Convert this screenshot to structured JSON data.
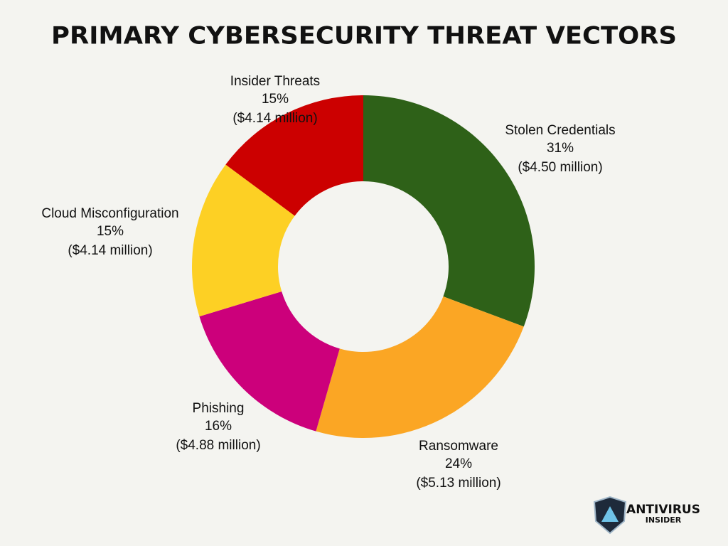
{
  "chart_data": {
    "type": "donut",
    "title": "PRIMARY CYBERSECURITY THREAT VECTORS",
    "categories": [
      "Stolen Credentials",
      "Ransomware",
      "Phishing",
      "Cloud Misconfiguration",
      "Insider Threats"
    ],
    "values": [
      31,
      24,
      16,
      15,
      15
    ],
    "value_labels": [
      "31%",
      "24%",
      "16%",
      "15%",
      "15%"
    ],
    "cost_labels": [
      "($4.50 million)",
      "($5.13 million)",
      "($4.88 million)",
      "($4.14 million)",
      "($4.14 million)"
    ],
    "colors": [
      "#2e6118",
      "#fba624",
      "#cc007b",
      "#fdd024",
      "#cc0000"
    ]
  },
  "logo": {
    "line1": "ANTIVIRUS",
    "line2": "INSIDER"
  }
}
